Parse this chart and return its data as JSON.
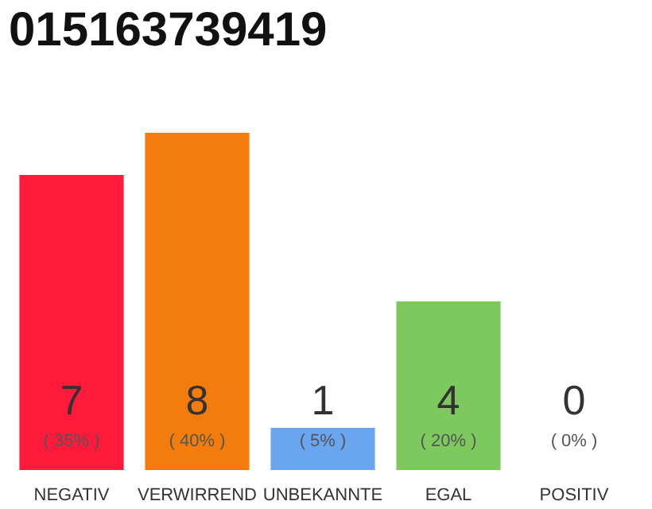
{
  "chart_data": {
    "type": "bar",
    "title": "015163739419",
    "categories": [
      "NEGATIV",
      "VERWIRREND",
      "UNBEKANNTE",
      "EGAL",
      "POSITIV"
    ],
    "colors": [
      "#ff1a3c",
      "#f47c0c",
      "#6aa5f0",
      "#7dc95e",
      "#ececec"
    ],
    "values": [
      7,
      8,
      1,
      4,
      0
    ],
    "value_labels": [
      "7\n( 35% )",
      "8\n( 40% )",
      "1\n( 5% )",
      "4\n( 20% )",
      "0\n( 0% )"
    ]
  }
}
